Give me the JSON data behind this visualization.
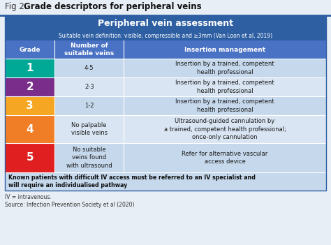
{
  "fig_title_regular": "Fig 2. ",
  "fig_title_bold": "Grade descriptors for peripheral veins",
  "table_title": "Peripheral vein assessment",
  "subtitle": "Suitable vein definition: visible, compressible and ≥3mm (Van Loon et al, 2019)",
  "col_headers": [
    "Grade",
    "Number of\nsuitable veins",
    "Insertion management"
  ],
  "rows": [
    {
      "grade": "1",
      "grade_color": "#00A896",
      "veins": "4-5",
      "management": "Insertion by a trained, competent\nhealth professional"
    },
    {
      "grade": "2",
      "grade_color": "#7B2D8B",
      "veins": "2-3",
      "management": "Insertion by a trained, competent\nhealth professional"
    },
    {
      "grade": "3",
      "grade_color": "#F5A623",
      "veins": "1-2",
      "management": "Insertion by a trained, competent\nhealth professional"
    },
    {
      "grade": "4",
      "grade_color": "#F07E26",
      "veins": "No palpable\nvisible veins",
      "management": "Ultrasound-guided cannulation by\na trained, competent health professional;\nonce-only cannulation"
    },
    {
      "grade": "5",
      "grade_color": "#E02020",
      "veins": "No suitable\nveins found\nwith ultrasound",
      "management": "Refer for alternative vascular\naccess device"
    }
  ],
  "footer_text": "Known patients with difficult IV access must be referred to an IV specialist and\nwill require an individualised pathway",
  "footnote1": "IV = intravenous.",
  "footnote2": "Source: Infection Prevention Society et al (2020)",
  "header_bg": "#2E5FA3",
  "header_text_color": "#FFFFFF",
  "col_header_bg": "#4A72C4",
  "col_header_text": "#FFFFFF",
  "row_bg_even": "#C5D8EC",
  "row_bg_odd": "#D9E5F3",
  "footer_bg": "#C5D8EC",
  "divider_color": "#FFFFFF",
  "table_border_color": "#2E5FA3",
  "fig_bg": "#E8EEF5",
  "background": "#FFFFFF"
}
